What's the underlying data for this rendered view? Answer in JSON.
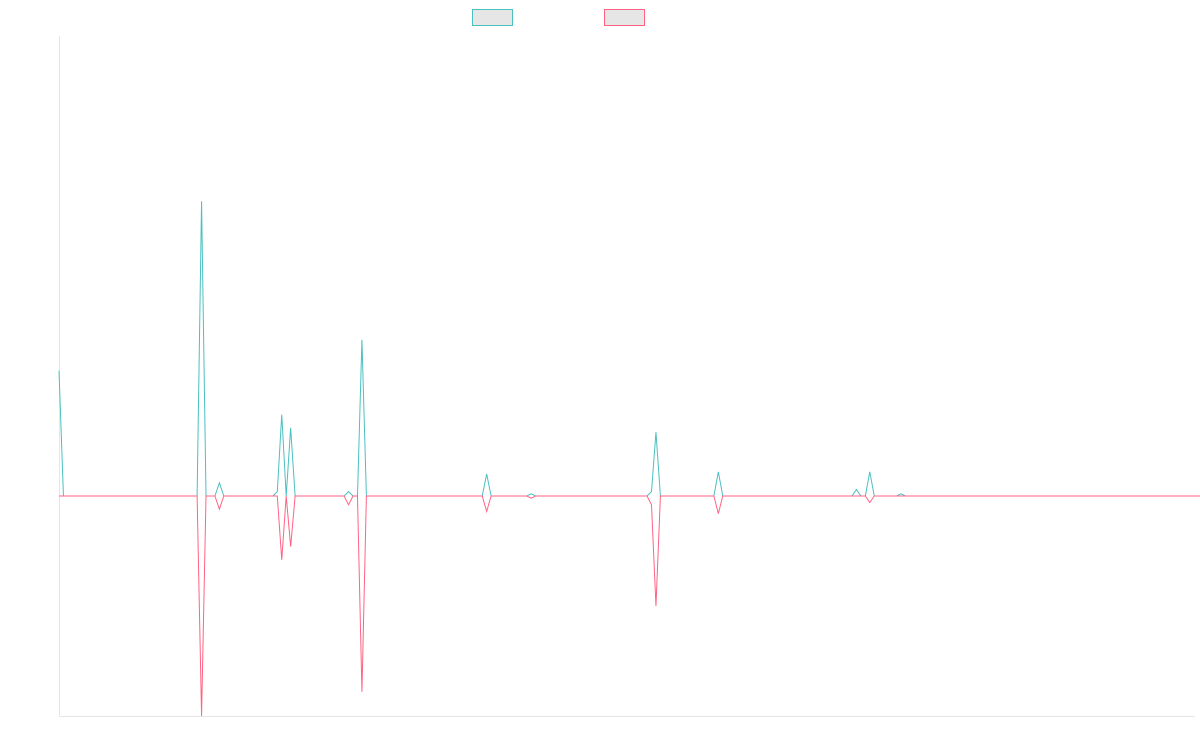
{
  "chart_data": {
    "type": "line",
    "title": "",
    "xlabel": "",
    "ylabel": "",
    "grid": false,
    "legend_position": "top",
    "x_count": 256,
    "ylim": [
      -100,
      100
    ],
    "baseline": 0,
    "series": [
      {
        "name": "",
        "color": "#4bc0c0",
        "fill": "#e6e6e6",
        "values": [
          57,
          0,
          0,
          0,
          0,
          0,
          0,
          0,
          0,
          0,
          0,
          0,
          0,
          0,
          0,
          0,
          0,
          0,
          0,
          0,
          0,
          0,
          0,
          0,
          0,
          0,
          0,
          0,
          0,
          0,
          0,
          0,
          134,
          0,
          0,
          0,
          6,
          0,
          0,
          0,
          0,
          0,
          0,
          0,
          0,
          0,
          0,
          0,
          0,
          2,
          37,
          0,
          31,
          0,
          0,
          0,
          0,
          0,
          0,
          0,
          0,
          0,
          0,
          0,
          0,
          2,
          0,
          0,
          71,
          0,
          0,
          0,
          0,
          0,
          0,
          0,
          0,
          0,
          0,
          0,
          0,
          0,
          0,
          0,
          0,
          0,
          0,
          0,
          0,
          0,
          0,
          0,
          0,
          0,
          0,
          0,
          10,
          0,
          0,
          0,
          0,
          0,
          0,
          0,
          0,
          0,
          1,
          0,
          0,
          0,
          0,
          0,
          0,
          0,
          0,
          0,
          0,
          0,
          0,
          0,
          0,
          0,
          0,
          0,
          0,
          0,
          0,
          0,
          0,
          0,
          0,
          0,
          0,
          2,
          29,
          0,
          0,
          0,
          0,
          0,
          0,
          0,
          0,
          0,
          0,
          0,
          0,
          0,
          11,
          0,
          0,
          0,
          0,
          0,
          0,
          0,
          0,
          0,
          0,
          0,
          0,
          0,
          0,
          0,
          0,
          0,
          0,
          0,
          0,
          0,
          0,
          0,
          0,
          0,
          0,
          0,
          0,
          0,
          0,
          3,
          0,
          0,
          11,
          0,
          0,
          0,
          0,
          0,
          0,
          1,
          0,
          0,
          0,
          0,
          0,
          0,
          0,
          0,
          0,
          0,
          0,
          0,
          0,
          0,
          0,
          0,
          0,
          0,
          0,
          0,
          0,
          0,
          0,
          0,
          0,
          0,
          0,
          0,
          0,
          0,
          0,
          0,
          0,
          0,
          0,
          0,
          0,
          0,
          0,
          0,
          0,
          0,
          0,
          0,
          0,
          0,
          0,
          0,
          0,
          0,
          0,
          0,
          0,
          0,
          0,
          0,
          0,
          0,
          0,
          0,
          0,
          0,
          0,
          0,
          0,
          0,
          0,
          0,
          0,
          0,
          0,
          0,
          0
        ]
      },
      {
        "name": "",
        "color": "#ff6384",
        "fill": "#e6e6e6",
        "values": [
          0,
          0,
          0,
          0,
          0,
          0,
          0,
          0,
          0,
          0,
          0,
          0,
          0,
          0,
          0,
          0,
          0,
          0,
          0,
          0,
          0,
          0,
          0,
          0,
          0,
          0,
          0,
          0,
          0,
          0,
          0,
          0,
          -100,
          0,
          0,
          0,
          -6,
          0,
          0,
          0,
          0,
          0,
          0,
          0,
          0,
          0,
          0,
          0,
          0,
          0,
          -29,
          0,
          -23,
          0,
          0,
          0,
          0,
          0,
          0,
          0,
          0,
          0,
          0,
          0,
          0,
          -4,
          0,
          0,
          -89,
          0,
          0,
          0,
          0,
          0,
          0,
          0,
          0,
          0,
          0,
          0,
          0,
          0,
          0,
          0,
          0,
          0,
          0,
          0,
          0,
          0,
          0,
          0,
          0,
          0,
          0,
          0,
          -7,
          0,
          0,
          0,
          0,
          0,
          0,
          0,
          0,
          0,
          -1,
          0,
          0,
          0,
          0,
          0,
          0,
          0,
          0,
          0,
          0,
          0,
          0,
          0,
          0,
          0,
          0,
          0,
          0,
          0,
          0,
          0,
          0,
          0,
          0,
          0,
          0,
          -4,
          -50,
          0,
          0,
          0,
          0,
          0,
          0,
          0,
          0,
          0,
          0,
          0,
          0,
          0,
          -8,
          0,
          0,
          0,
          0,
          0,
          0,
          0,
          0,
          0,
          0,
          0,
          0,
          0,
          0,
          0,
          0,
          0,
          0,
          0,
          0,
          0,
          0,
          0,
          0,
          0,
          0,
          0,
          0,
          0,
          0,
          0,
          0,
          0,
          -3,
          0,
          0,
          0,
          0,
          0,
          0,
          0,
          0,
          0,
          0,
          0,
          0,
          0,
          0,
          0,
          0,
          0,
          0,
          0,
          0,
          0,
          0,
          0,
          0,
          0,
          0,
          0,
          0,
          0,
          0,
          0,
          0,
          0,
          0,
          0,
          0,
          0,
          0,
          0,
          0,
          0,
          0,
          0,
          0,
          0,
          0,
          0,
          0,
          0,
          0,
          0,
          0,
          0,
          0,
          0,
          0,
          0,
          0,
          0,
          0,
          0,
          0,
          0,
          0,
          0,
          0,
          0,
          0,
          0,
          0,
          0,
          0,
          0,
          0,
          0,
          0,
          0,
          0,
          0,
          0,
          0,
          0,
          0
        ]
      }
    ]
  }
}
